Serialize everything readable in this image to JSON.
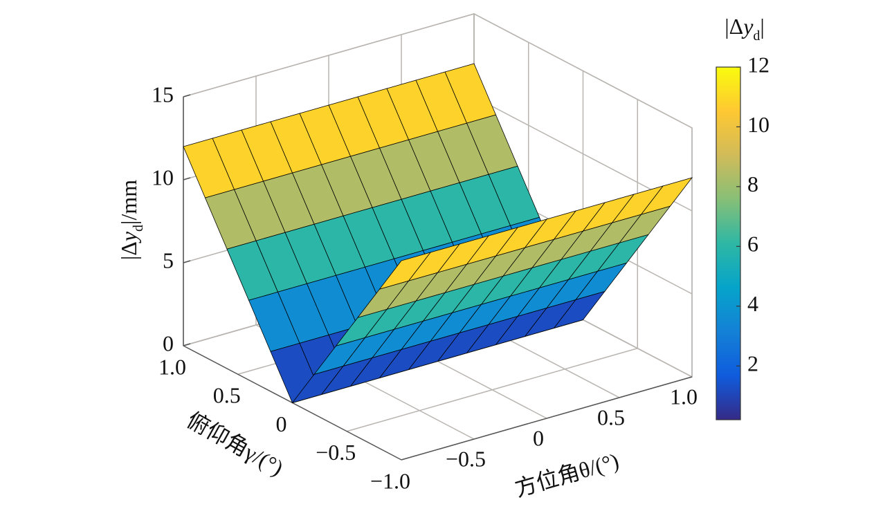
{
  "chart_data": {
    "type": "surface",
    "x": [
      -1,
      -0.8,
      -0.6,
      -0.4,
      -0.2,
      0,
      0.2,
      0.4,
      0.6,
      0.8,
      1
    ],
    "y": [
      -1,
      -0.8,
      -0.6,
      -0.4,
      -0.2,
      0,
      0.2,
      0.4,
      0.6,
      0.8,
      1
    ],
    "z": [
      [
        12,
        12,
        12,
        12,
        12,
        12,
        12,
        12,
        12,
        12,
        12
      ],
      [
        9.6,
        9.6,
        9.6,
        9.6,
        9.6,
        9.6,
        9.6,
        9.6,
        9.6,
        9.6,
        9.6
      ],
      [
        7.2,
        7.2,
        7.2,
        7.2,
        7.2,
        7.2,
        7.2,
        7.2,
        7.2,
        7.2,
        7.2
      ],
      [
        4.8,
        4.8,
        4.8,
        4.8,
        4.8,
        4.8,
        4.8,
        4.8,
        4.8,
        4.8,
        4.8
      ],
      [
        2.4,
        2.4,
        2.4,
        2.4,
        2.4,
        2.4,
        2.4,
        2.4,
        2.4,
        2.4,
        2.4
      ],
      [
        0,
        0,
        0,
        0,
        0,
        0,
        0,
        0,
        0,
        0,
        0
      ],
      [
        2.4,
        2.4,
        2.4,
        2.4,
        2.4,
        2.4,
        2.4,
        2.4,
        2.4,
        2.4,
        2.4
      ],
      [
        4.8,
        4.8,
        4.8,
        4.8,
        4.8,
        4.8,
        4.8,
        4.8,
        4.8,
        4.8,
        4.8
      ],
      [
        7.2,
        7.2,
        7.2,
        7.2,
        7.2,
        7.2,
        7.2,
        7.2,
        7.2,
        7.2,
        7.2
      ],
      [
        9.6,
        9.6,
        9.6,
        9.6,
        9.6,
        9.6,
        9.6,
        9.6,
        9.6,
        9.6,
        9.6
      ],
      [
        12,
        12,
        12,
        12,
        12,
        12,
        12,
        12,
        12,
        12,
        12
      ]
    ],
    "xlabel": "方位角θ/(°)",
    "ylabel": "俯仰角γ/(°)",
    "zlabel": [
      "|Δ",
      "y",
      "d",
      "|/mm"
    ],
    "xlim": [
      -1,
      1
    ],
    "ylim": [
      -1,
      1
    ],
    "zlim": [
      0,
      15
    ],
    "xticks": [
      {
        "value": -0.5,
        "label": "−0.5"
      },
      0,
      0.5,
      {
        "value": 1,
        "label": "1.0"
      }
    ],
    "yticks": [
      {
        "value": 1,
        "label": "1.0"
      },
      0.5,
      0,
      {
        "value": -0.5,
        "label": "−0.5"
      },
      {
        "value": -1,
        "label": "−1.0"
      }
    ],
    "zticks": [
      0,
      5,
      10,
      15
    ],
    "grid": true,
    "colormap": "parula",
    "edgecolor": "#000000",
    "colorbar": {
      "label": [
        "|Δ",
        "y",
        "d",
        "|"
      ],
      "clim": [
        0.2,
        12
      ],
      "ticks": [
        2,
        4,
        6,
        8,
        10,
        12
      ]
    }
  }
}
